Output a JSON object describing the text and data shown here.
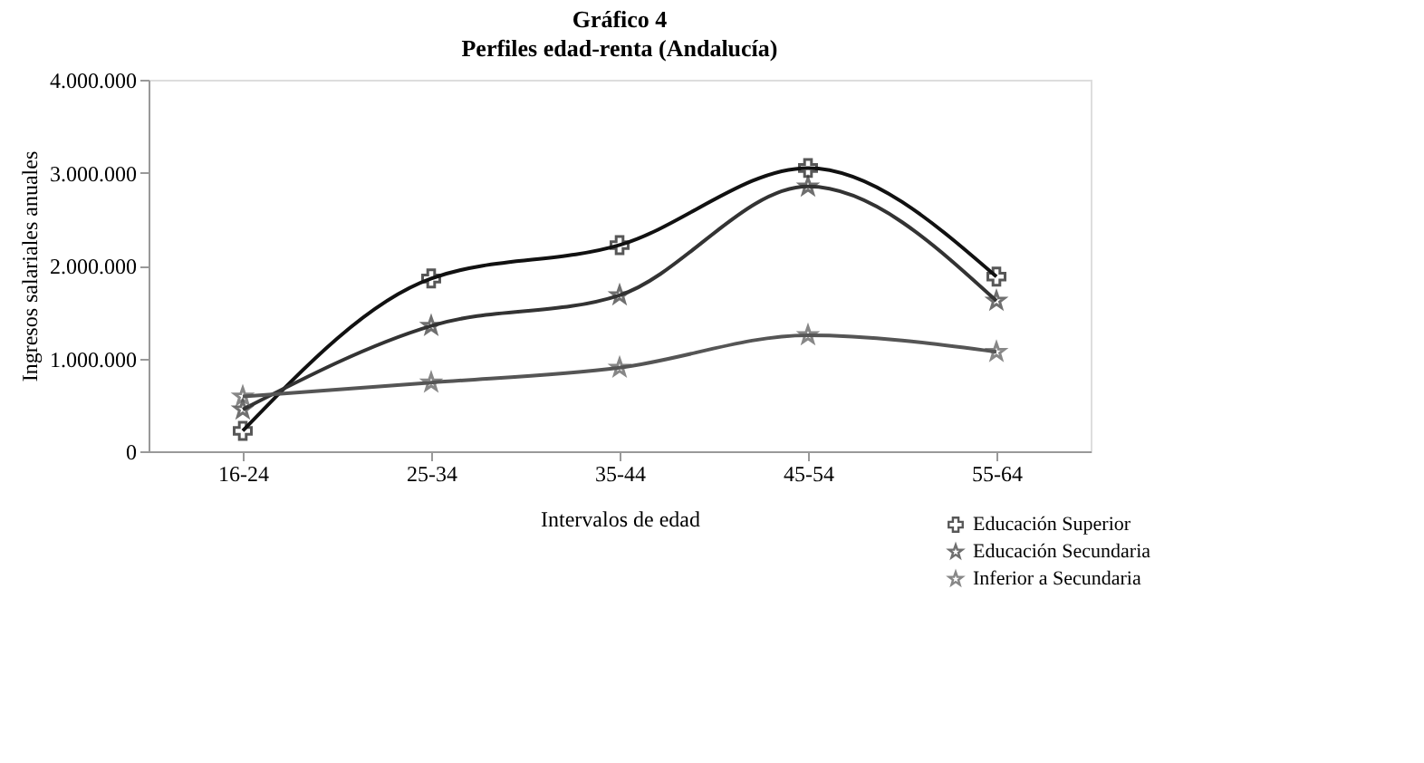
{
  "chart_data": {
    "type": "line",
    "title": "Gráfico 4",
    "subtitle": "Perfiles edad-renta (Andalucía)",
    "xlabel": "Intervalos de edad",
    "ylabel": "Ingresos salariales anuales",
    "categories": [
      "16-24",
      "25-34",
      "35-44",
      "45-54",
      "55-64"
    ],
    "series": [
      {
        "name": "Educación Superior",
        "color": "#111111",
        "marker": "cross",
        "values": [
          220000,
          1860000,
          2220000,
          3050000,
          1880000
        ]
      },
      {
        "name": "Educación Secundaria",
        "color": "#333333",
        "marker": "star",
        "values": [
          450000,
          1350000,
          1680000,
          2850000,
          1620000
        ]
      },
      {
        "name": "Inferior a Secundaria",
        "color": "#555555",
        "marker": "star",
        "values": [
          590000,
          740000,
          900000,
          1250000,
          1070000
        ]
      }
    ],
    "ylim": [
      0,
      4000000
    ],
    "yticks": [
      {
        "value": 0,
        "label": "0"
      },
      {
        "value": 1000000,
        "label": "1.000.000"
      },
      {
        "value": 2000000,
        "label": "2.000.000"
      },
      {
        "value": 3000000,
        "label": "3.000.000"
      },
      {
        "value": 4000000,
        "label": "4.000.000"
      }
    ],
    "grid": false,
    "legend": "bottom right",
    "line_style": "solid"
  }
}
